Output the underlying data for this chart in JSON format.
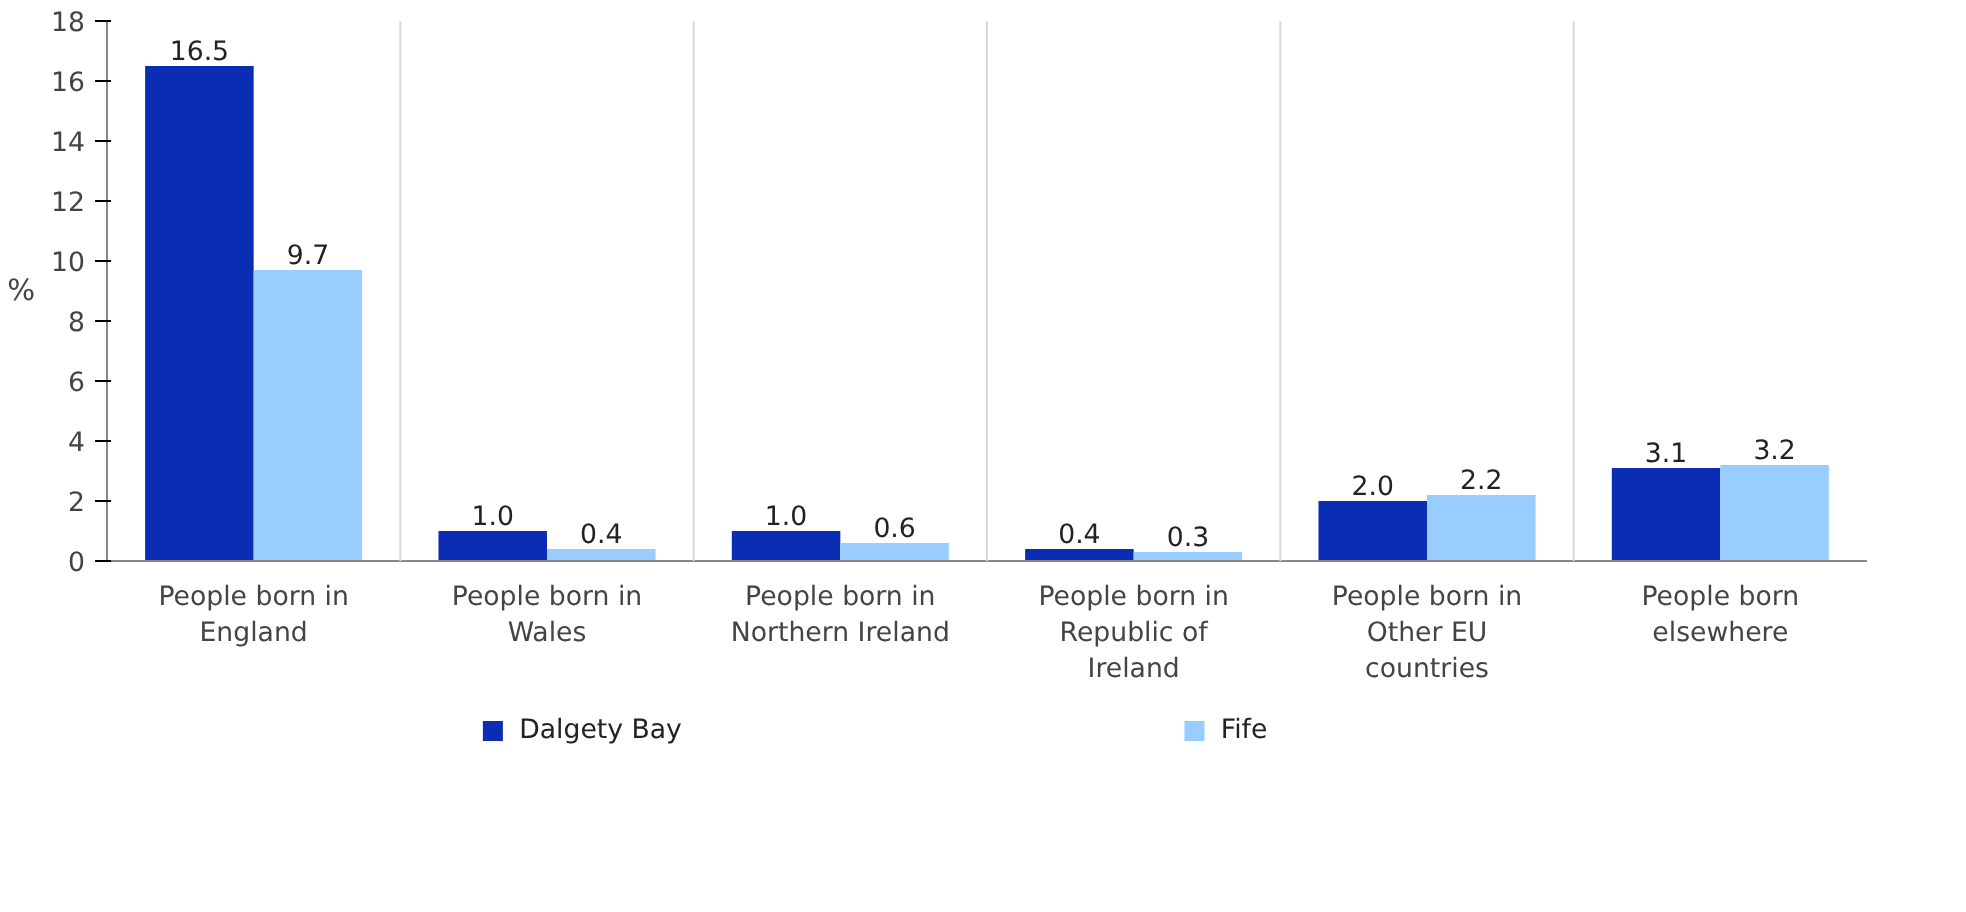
{
  "chart_data": {
    "type": "bar",
    "ylabel": "%",
    "categories": [
      "People born in England",
      "People born in Wales",
      "People born in Northern Ireland",
      "People born in Republic of Ireland",
      "People born in Other EU countries",
      "People born elsewhere"
    ],
    "series": [
      {
        "name": "Dalgety Bay",
        "color": "#0a2db4",
        "values": [
          16.5,
          1.0,
          1.0,
          0.4,
          2.0,
          3.1
        ],
        "value_labels": [
          "16.5",
          "1.0",
          "1.0",
          "0.4",
          "2.0",
          "3.1"
        ]
      },
      {
        "name": "Fife",
        "color": "#99ccff",
        "values": [
          9.7,
          0.4,
          0.6,
          0.3,
          2.2,
          3.2
        ],
        "value_labels": [
          "9.7",
          "0.4",
          "0.6",
          "0.3",
          "2.2",
          "3.2"
        ]
      }
    ],
    "ylim": [
      0,
      18
    ],
    "yticks": [
      0,
      2,
      4,
      6,
      8,
      10,
      12,
      14,
      16,
      18
    ],
    "grid": "x",
    "legend": "bottom"
  }
}
